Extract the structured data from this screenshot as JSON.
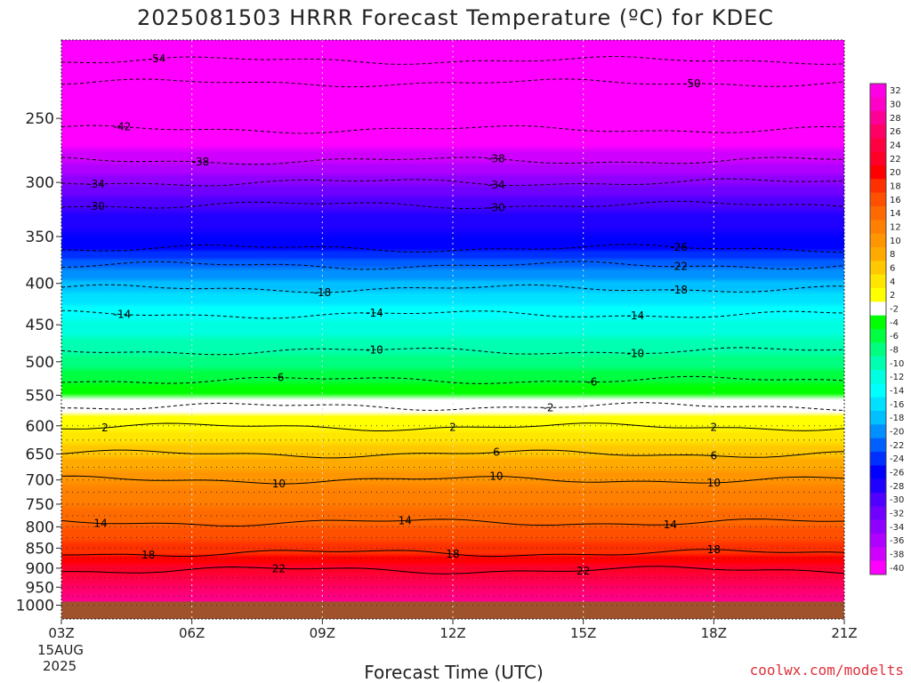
{
  "title": "2025081503 HRRR Forecast Temperature (ºC) for KDEC",
  "credit": "coolwx.com/modelts",
  "chart_data": {
    "type": "heatmap",
    "title": "2025081503 HRRR Forecast Temperature (ºC) for KDEC",
    "xlabel": "Forecast Time (UTC)",
    "ylabel": "",
    "x_ticks": [
      "03Z",
      "06Z",
      "09Z",
      "12Z",
      "15Z",
      "18Z",
      "21Z"
    ],
    "x_first_tick_date": "15AUG",
    "x_first_tick_year": "2025",
    "x_range_hours": [
      3,
      21
    ],
    "y_ticks": [
      250,
      300,
      350,
      400,
      450,
      500,
      550,
      600,
      650,
      700,
      750,
      800,
      850,
      900,
      950,
      1000
    ],
    "y_range": [
      200,
      1040
    ],
    "y_scale": "log-pressure",
    "y_inverted": true,
    "grid": "dotted vertical at x ticks, dotted horizontal at pressure levels",
    "colorbar_ticks": [
      "32",
      "30",
      "28",
      "26",
      "24",
      "22",
      "20",
      "18",
      "16",
      "14",
      "12",
      "10",
      "8",
      "6",
      "4",
      "2",
      "-2",
      "-4",
      "-6",
      "-8",
      "-10",
      "-12",
      "-14",
      "-16",
      "-18",
      "-20",
      "-22",
      "-24",
      "-26",
      "-28",
      "-30",
      "-32",
      "-34",
      "-36",
      "-38",
      "-40"
    ],
    "colorbar_colors": [
      "#ff00e6",
      "#ff00c8",
      "#ff0096",
      "#ff0064",
      "#ff0040",
      "#ff0028",
      "#ff0000",
      "#ff3000",
      "#ff5000",
      "#ff6a00",
      "#ff8000",
      "#ff9500",
      "#ffaa00",
      "#ffc800",
      "#ffe600",
      "#ffff00",
      "#ffffff",
      "#00ff00",
      "#00ff40",
      "#00ff80",
      "#00ffb0",
      "#00ffe0",
      "#00ffff",
      "#00e0ff",
      "#00c0ff",
      "#0090ff",
      "#0060ff",
      "#0030ff",
      "#0000ff",
      "#2000ff",
      "#5000ff",
      "#7000ff",
      "#9000ff",
      "#b000ff",
      "#d000ff",
      "#ff00ff"
    ],
    "ground_color": "#a0522d",
    "ground_level_hpa": 990,
    "isotherms": [
      {
        "label": "-54",
        "p": 212,
        "style": "dashed",
        "label_hours": [
          5.2
        ]
      },
      {
        "label": "-50",
        "p": 226,
        "style": "dashed",
        "label_hours": [
          17.5
        ]
      },
      {
        "label": "-42",
        "p": 258,
        "style": "dashed",
        "label_hours": [
          4.4
        ]
      },
      {
        "label": "-38",
        "p": 282,
        "style": "dashed",
        "label_hours": [
          6.2,
          13.0
        ]
      },
      {
        "label": "-34",
        "p": 300,
        "style": "dashed",
        "label_hours": [
          3.8,
          13.0
        ]
      },
      {
        "label": "-30",
        "p": 320,
        "style": "dashed",
        "label_hours": [
          3.8,
          13.0
        ]
      },
      {
        "label": "-26",
        "p": 362,
        "style": "dashed",
        "label_hours": [
          17.2
        ]
      },
      {
        "label": "-22",
        "p": 380,
        "style": "dashed",
        "label_hours": [
          17.2
        ]
      },
      {
        "label": "-18",
        "p": 406,
        "style": "dashed",
        "label_hours": [
          9.0,
          17.2
        ]
      },
      {
        "label": "-14",
        "p": 437,
        "style": "dashed",
        "label_hours": [
          4.4,
          10.2,
          16.2
        ]
      },
      {
        "label": "-10",
        "p": 485,
        "style": "dashed",
        "label_hours": [
          10.2,
          16.2
        ]
      },
      {
        "label": "-6",
        "p": 527,
        "style": "dashed",
        "label_hours": [
          8.0,
          15.2
        ]
      },
      {
        "label": "-2",
        "p": 568,
        "style": "dashed",
        "label_hours": [
          14.2
        ]
      },
      {
        "label": "2",
        "p": 602,
        "style": "solid",
        "label_hours": [
          4.0,
          12.0,
          18.0
        ]
      },
      {
        "label": "6",
        "p": 650,
        "style": "solid",
        "label_hours": [
          13.0,
          18.0
        ]
      },
      {
        "label": "10",
        "p": 700,
        "style": "solid",
        "label_hours": [
          8.0,
          13.0,
          18.0
        ]
      },
      {
        "label": "14",
        "p": 790,
        "style": "solid",
        "label_hours": [
          3.9,
          10.9,
          17.0
        ]
      },
      {
        "label": "18",
        "p": 862,
        "style": "solid",
        "label_hours": [
          5.0,
          12.0,
          18.0
        ]
      },
      {
        "label": "22",
        "p": 905,
        "style": "solid",
        "label_hours": [
          8.0,
          15.0
        ]
      }
    ]
  }
}
